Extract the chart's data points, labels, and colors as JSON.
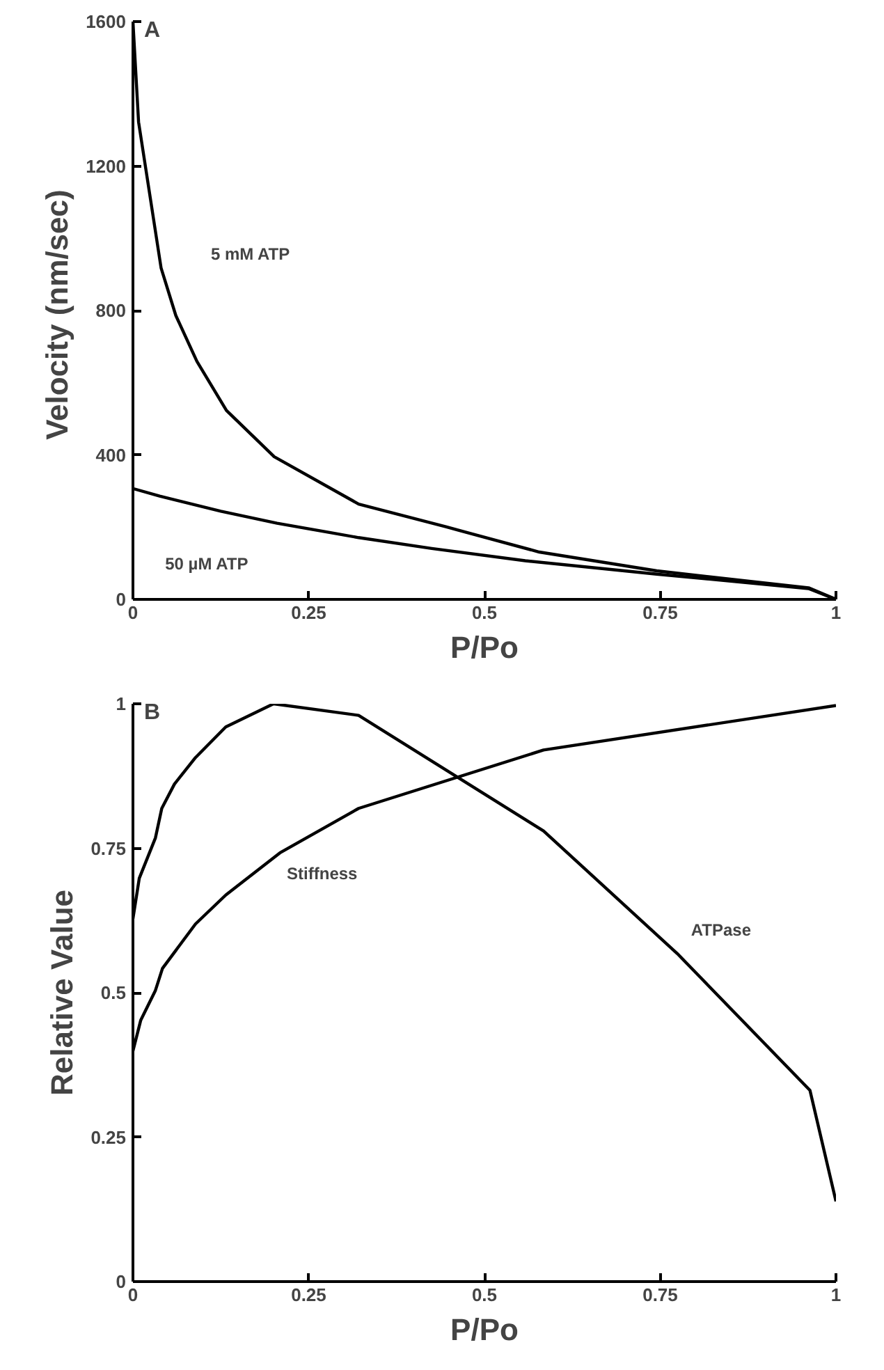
{
  "chart_data": [
    {
      "type": "line",
      "xlabel": "P/Po",
      "ylabel": "Velocity  (nm/sec)",
      "xlim": [
        0,
        1
      ],
      "ylim": [
        0,
        1600
      ],
      "xticks": [
        0,
        0.25,
        0.5,
        0.75,
        1
      ],
      "yticks": [
        0,
        400,
        800,
        1200,
        1600
      ],
      "grid": false,
      "legend": false,
      "series": [
        {
          "name": "5 mM ATP",
          "color": "#000000",
          "x": [
            0,
            0.008,
            0.04,
            0.061,
            0.091,
            0.133,
            0.201,
            0.321,
            0.445,
            0.578,
            0.745,
            0.961,
            1
          ],
          "values": [
            1600,
            1322,
            918,
            786,
            659,
            523,
            395,
            264,
            201,
            131,
            79,
            32,
            0
          ]
        },
        {
          "name": "50 µM ATP",
          "color": "#000000",
          "x": [
            0,
            0.038,
            0.125,
            0.205,
            0.321,
            0.425,
            0.558,
            0.745,
            0.961,
            1
          ],
          "values": [
            307,
            286,
            244,
            211,
            171,
            141,
            107,
            70,
            30,
            0
          ]
        }
      ],
      "annotations": [
        "A"
      ]
    },
    {
      "type": "line",
      "xlabel": "P/Po",
      "ylabel": "Relative Value",
      "xlim": [
        0,
        1
      ],
      "ylim": [
        0,
        1
      ],
      "xticks": [
        0,
        0.25,
        0.5,
        0.75,
        1
      ],
      "yticks": [
        0,
        0.25,
        0.5,
        0.75,
        1
      ],
      "grid": false,
      "legend": false,
      "series": [
        {
          "name": "ATPase",
          "color": "#000000",
          "x": [
            0,
            0.009,
            0.032,
            0.041,
            0.059,
            0.089,
            0.132,
            0.2,
            0.321,
            0.584,
            0.774,
            0.963,
            1
          ],
          "values": [
            0.628,
            0.698,
            0.768,
            0.819,
            0.861,
            0.907,
            0.96,
            1.0,
            0.98,
            0.78,
            0.568,
            0.331,
            0.139
          ]
        },
        {
          "name": "Stiffness",
          "color": "#000000",
          "x": [
            0,
            0.011,
            0.032,
            0.042,
            0.089,
            0.132,
            0.209,
            0.321,
            0.584,
            1
          ],
          "values": [
            0.399,
            0.452,
            0.504,
            0.542,
            0.619,
            0.669,
            0.742,
            0.819,
            0.92,
            0.997
          ]
        }
      ],
      "annotations": [
        "B"
      ]
    }
  ]
}
